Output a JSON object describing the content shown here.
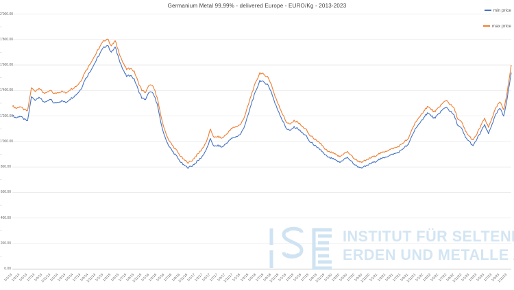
{
  "chart_data": {
    "type": "line",
    "title": "Germanium Metal 99,99% - delivered Europe - EURO/Kg - 2013-2023",
    "xlabel": "",
    "ylabel": "EURO/Kg",
    "x_start": "Jan 2013",
    "x_end": "Dec 2023",
    "x_interval": "monthly",
    "ylim": [
      0,
      2000
    ],
    "grid": true,
    "legend_position": "top-right",
    "y_ticks": [
      {
        "value": 0,
        "label": "0.00"
      },
      {
        "value": 200,
        "label": "200.00"
      },
      {
        "value": 400,
        "label": "400.00"
      },
      {
        "value": 600,
        "label": "600.00"
      },
      {
        "value": 800,
        "label": "800.00"
      },
      {
        "value": 1000,
        "label": "1'000.00"
      },
      {
        "value": 1200,
        "label": "1'200.00"
      },
      {
        "value": 1400,
        "label": "1'400.00"
      },
      {
        "value": 1600,
        "label": "1'600.00"
      },
      {
        "value": 1800,
        "label": "1'800.00"
      },
      {
        "value": 2000,
        "label": "2'000.00"
      }
    ],
    "x_tick_labels": [
      "1/1/13",
      "1/3/13",
      "1/5/13",
      "1/7/13",
      "1/9/13",
      "1/11/13",
      "1/1/14",
      "1/3/14",
      "1/5/14",
      "1/7/14",
      "1/9/14",
      "1/11/14",
      "1/1/15",
      "1/3/15",
      "1/5/15",
      "1/7/15",
      "1/9/15",
      "1/11/15",
      "1/1/16",
      "1/3/16",
      "1/5/16",
      "1/7/16",
      "1/9/16",
      "1/11/16",
      "1/1/17",
      "1/3/17",
      "1/5/17",
      "1/7/17",
      "1/9/17",
      "1/11/17",
      "1/1/18",
      "1/3/18",
      "1/5/18",
      "1/7/18",
      "1/9/18",
      "1/11/18",
      "1/1/19",
      "1/3/19",
      "1/5/19",
      "1/7/19",
      "1/9/19",
      "1/11/19",
      "1/1/20",
      "1/3/20",
      "1/5/20",
      "1/7/20",
      "1/9/20",
      "1/11/20",
      "1/1/21",
      "1/3/21",
      "1/5/21",
      "1/7/21",
      "1/9/21",
      "1/11/21",
      "1/1/22",
      "1/3/22",
      "1/5/22",
      "1/7/22",
      "1/9/22",
      "1/11/22",
      "1/1/23",
      "1/3/23",
      "1/5/23",
      "1/7/23",
      "1/9/23",
      "1/11/23"
    ],
    "series": [
      {
        "name": "min price",
        "color": "#4472C4",
        "values": [
          1205,
          1185,
          1200,
          1175,
          1160,
          1350,
          1325,
          1350,
          1315,
          1310,
          1330,
          1300,
          1310,
          1320,
          1305,
          1330,
          1350,
          1375,
          1410,
          1480,
          1530,
          1580,
          1635,
          1690,
          1740,
          1755,
          1700,
          1740,
          1650,
          1565,
          1510,
          1520,
          1490,
          1410,
          1340,
          1330,
          1390,
          1375,
          1300,
          1145,
          1040,
          970,
          925,
          890,
          845,
          815,
          795,
          805,
          830,
          855,
          890,
          940,
          1020,
          960,
          970,
          955,
          980,
          1010,
          1030,
          1040,
          1060,
          1125,
          1215,
          1320,
          1400,
          1480,
          1465,
          1450,
          1390,
          1295,
          1230,
          1160,
          1100,
          1085,
          1115,
          1100,
          1070,
          1050,
          1000,
          980,
          950,
          935,
          895,
          875,
          865,
          850,
          835,
          860,
          875,
          845,
          815,
          800,
          795,
          810,
          825,
          840,
          855,
          865,
          880,
          890,
          900,
          910,
          930,
          955,
          975,
          1050,
          1110,
          1140,
          1190,
          1225,
          1200,
          1180,
          1220,
          1250,
          1270,
          1235,
          1205,
          1125,
          1100,
          1030,
          1000,
          965,
          1020,
          1075,
          1130,
          1060,
          1140,
          1215,
          1260,
          1200,
          1350,
          1540
        ]
      },
      {
        "name": "max price",
        "color": "#ED7D31",
        "values": [
          1280,
          1260,
          1275,
          1250,
          1240,
          1420,
          1395,
          1420,
          1385,
          1380,
          1400,
          1375,
          1385,
          1395,
          1380,
          1405,
          1420,
          1440,
          1475,
          1540,
          1590,
          1640,
          1690,
          1745,
          1790,
          1805,
          1750,
          1790,
          1700,
          1620,
          1565,
          1575,
          1550,
          1470,
          1400,
          1385,
          1445,
          1430,
          1350,
          1200,
          1090,
          1015,
          970,
          935,
          890,
          860,
          835,
          845,
          880,
          910,
          950,
          1000,
          1095,
          1030,
          1040,
          1025,
          1050,
          1085,
          1110,
          1120,
          1135,
          1200,
          1290,
          1390,
          1470,
          1540,
          1525,
          1510,
          1450,
          1350,
          1285,
          1210,
          1150,
          1135,
          1165,
          1150,
          1120,
          1100,
          1050,
          1030,
          1000,
          985,
          940,
          920,
          910,
          895,
          880,
          905,
          920,
          890,
          860,
          845,
          840,
          855,
          870,
          885,
          900,
          910,
          925,
          935,
          945,
          955,
          975,
          1000,
          1020,
          1100,
          1160,
          1190,
          1240,
          1275,
          1250,
          1230,
          1270,
          1300,
          1325,
          1290,
          1260,
          1175,
          1150,
          1080,
          1040,
          1010,
          1060,
          1125,
          1180,
          1110,
          1190,
          1265,
          1310,
          1250,
          1400,
          1600
        ]
      }
    ]
  },
  "legend": {
    "min_label": "min price",
    "max_label": "max price"
  },
  "watermark": {
    "logo_text": "ISE",
    "line1": "INSTITUT FÜR SELTENE",
    "line2": "ERDEN UND METALLE AG",
    "color": "#cfe3f2"
  },
  "colors": {
    "min_line": "#4472C4",
    "max_line": "#ED7D31",
    "gridline": "#e9e9e9",
    "axis": "#c4c4c4",
    "tick_text": "#6a6a6a"
  }
}
